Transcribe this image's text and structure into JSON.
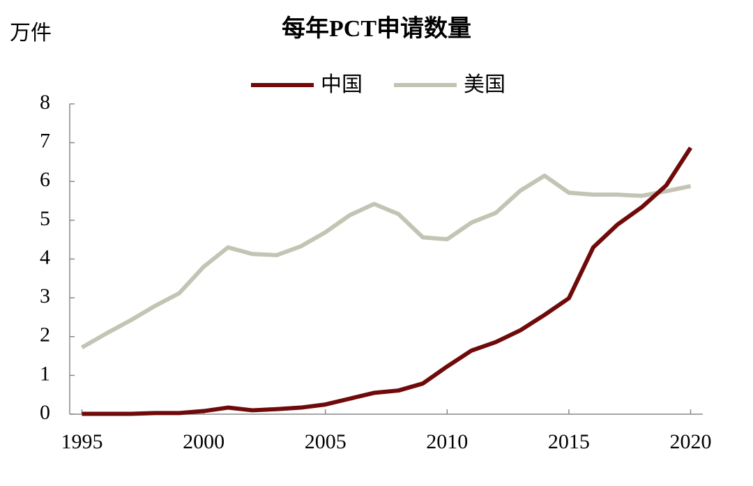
{
  "chart_data": {
    "type": "line",
    "title": "每年PCT申请数量",
    "y_label": "万件",
    "x": [
      1995,
      1996,
      1997,
      1998,
      1999,
      2000,
      2001,
      2002,
      2003,
      2004,
      2005,
      2006,
      2007,
      2008,
      2009,
      2010,
      2011,
      2012,
      2013,
      2014,
      2015,
      2016,
      2017,
      2018,
      2019,
      2020
    ],
    "series": [
      {
        "name": "中国",
        "color": "#700a0a",
        "values": [
          0.01,
          0.01,
          0.01,
          0.03,
          0.03,
          0.08,
          0.17,
          0.1,
          0.13,
          0.17,
          0.25,
          0.4,
          0.55,
          0.61,
          0.79,
          1.23,
          1.64,
          1.86,
          2.16,
          2.56,
          2.99,
          4.3,
          4.89,
          5.34,
          5.9,
          6.87
        ]
      },
      {
        "name": "美国",
        "color": "#c4c4b4",
        "values": [
          1.72,
          2.08,
          2.42,
          2.79,
          3.12,
          3.8,
          4.3,
          4.13,
          4.1,
          4.33,
          4.69,
          5.13,
          5.42,
          5.16,
          4.56,
          4.51,
          4.94,
          5.19,
          5.76,
          6.15,
          5.71,
          5.66,
          5.66,
          5.63,
          5.75,
          5.88
        ]
      }
    ],
    "xlim": [
      1994.5,
      2020.5
    ],
    "xticks": [
      1995,
      2000,
      2005,
      2010,
      2015,
      2020
    ],
    "ylim": [
      0,
      8
    ],
    "yticks": [
      0,
      1,
      2,
      3,
      4,
      5,
      6,
      7,
      8
    ],
    "legend": "top"
  }
}
